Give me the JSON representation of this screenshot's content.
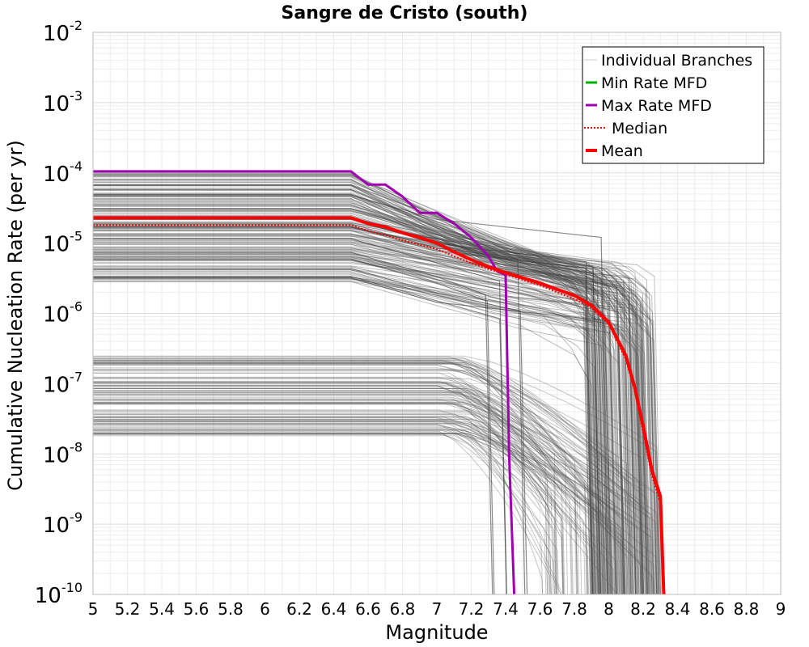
{
  "chart_data": {
    "type": "line",
    "title": "Sangre de Cristo (south)",
    "xlabel": "Magnitude",
    "ylabel": "Cumulative Nucleation Rate (per yr)",
    "xlim": [
      5,
      9
    ],
    "ylim": [
      1e-10,
      0.01
    ],
    "y_scale": "log",
    "grid": true,
    "x_ticks": [
      "5",
      "5.2",
      "5.4",
      "5.6",
      "5.8",
      "6",
      "6.2",
      "6.4",
      "6.6",
      "6.8",
      "7",
      "7.2",
      "7.4",
      "7.6",
      "7.8",
      "8",
      "8.2",
      "8.4",
      "8.6",
      "8.8",
      "9"
    ],
    "y_ticks": [
      {
        "base": "10",
        "exp": "-2",
        "value": 0.01
      },
      {
        "base": "10",
        "exp": "-3",
        "value": 0.001
      },
      {
        "base": "10",
        "exp": "-4",
        "value": 0.0001
      },
      {
        "base": "10",
        "exp": "-5",
        "value": 1e-05
      },
      {
        "base": "10",
        "exp": "-6",
        "value": 1e-06
      },
      {
        "base": "10",
        "exp": "-7",
        "value": 1e-07
      },
      {
        "base": "10",
        "exp": "-8",
        "value": 1e-08
      },
      {
        "base": "10",
        "exp": "-9",
        "value": 1e-09
      },
      {
        "base": "10",
        "exp": "-10",
        "value": 1e-10
      }
    ],
    "legend_position": "top-right",
    "legend": [
      {
        "label": "Individual Branches",
        "color": "#cccccc",
        "style": "thin"
      },
      {
        "label": "Min Rate MFD",
        "color": "#00b000",
        "style": "solid"
      },
      {
        "label": "Max Rate MFD",
        "color": "#a000b0",
        "style": "solid"
      },
      {
        "label": "Median",
        "color": "#ff0000",
        "style": "dotted"
      },
      {
        "label": "Mean",
        "color": "#ff0000",
        "style": "thick"
      }
    ],
    "series": [
      {
        "name": "Max Rate MFD",
        "color": "#a000b0",
        "x": [
          5,
          6.5,
          6.6,
          6.7,
          6.8,
          6.9,
          7.0,
          7.1,
          7.2,
          7.3,
          7.35,
          7.4,
          7.42,
          7.45
        ],
        "y": [
          0.000105,
          0.000105,
          6.8e-05,
          6.8e-05,
          4.6e-05,
          2.7e-05,
          2.7e-05,
          1.9e-05,
          1.2e-05,
          6.5e-06,
          4e-06,
          3.5e-06,
          1e-08,
          1e-10
        ]
      },
      {
        "name": "Mean",
        "color": "#ff0000",
        "x": [
          5,
          6.5,
          6.6,
          6.7,
          6.8,
          6.9,
          7.0,
          7.1,
          7.2,
          7.3,
          7.4,
          7.5,
          7.6,
          7.7,
          7.8,
          7.9,
          8.0,
          8.1,
          8.15,
          8.2,
          8.25,
          8.3,
          8.32,
          8.33
        ],
        "y": [
          2.3e-05,
          2.3e-05,
          1.9e-05,
          1.7e-05,
          1.4e-05,
          1.2e-05,
          1e-05,
          7.5e-06,
          5.8e-06,
          4.6e-06,
          3.8e-06,
          3.2e-06,
          2.7e-06,
          2.2e-06,
          1.8e-06,
          1.3e-06,
          7.5e-07,
          2.5e-07,
          9e-08,
          2.5e-08,
          6e-09,
          2.5e-09,
          1e-10,
          1e-10
        ]
      },
      {
        "name": "Median",
        "color": "#ff0000",
        "x": [
          5,
          6.5,
          6.6,
          6.7,
          6.8,
          6.9,
          7.0,
          7.1,
          7.2,
          7.3,
          7.4,
          7.5,
          7.6,
          7.7,
          7.8,
          7.9,
          8.0,
          8.1,
          8.15,
          8.2,
          8.25,
          8.3,
          8.32
        ],
        "y": [
          1.8e-05,
          1.8e-05,
          1.5e-05,
          1.3e-05,
          1.1e-05,
          9.5e-06,
          8.2e-06,
          6.5e-06,
          5.2e-06,
          4.3e-06,
          3.6e-06,
          3e-06,
          2.5e-06,
          2e-06,
          1.6e-06,
          1.2e-06,
          7e-07,
          2.2e-07,
          8e-08,
          2e-08,
          5e-09,
          2e-09,
          1e-10
        ]
      }
    ],
    "branch_envelope": {
      "upper_group": {
        "rate_range": [
          2.8e-06,
          0.0001
        ],
        "rolloff_start": 6.5,
        "knee_range": [
          7.3,
          7.6
        ],
        "cutoff_range": [
          7.9,
          8.32
        ]
      },
      "lower_group": {
        "rate_range": [
          1.8e-08,
          2.5e-07
        ],
        "rolloff_start": 7.0,
        "cutoff_range": [
          7.6,
          8.3
        ]
      }
    }
  }
}
